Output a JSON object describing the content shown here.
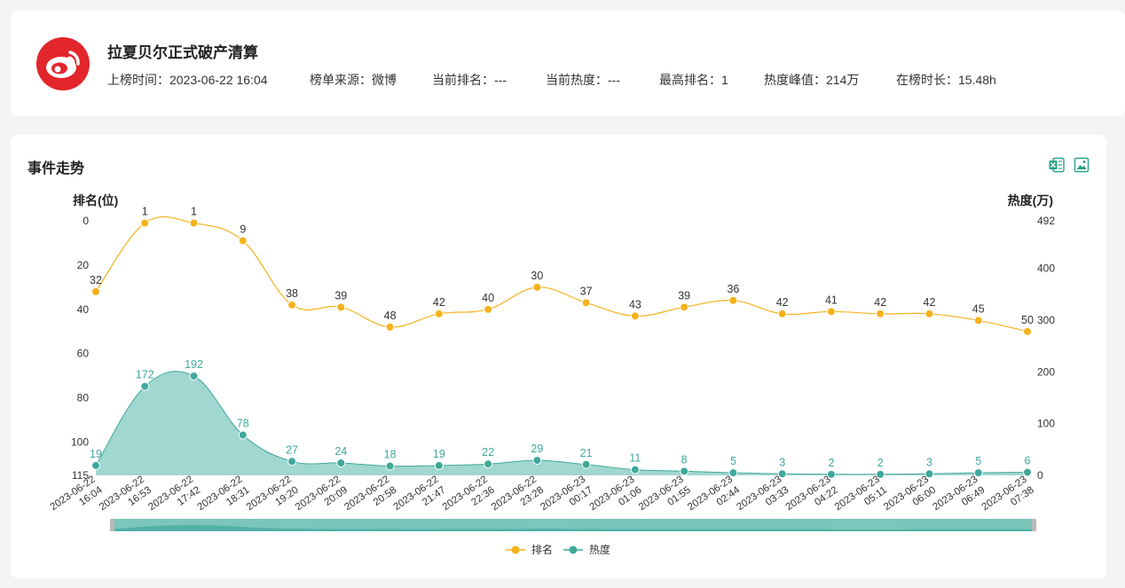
{
  "header": {
    "title": "拉夏贝尔正式破产清算",
    "meta": [
      {
        "label": "上榜时间：",
        "value": "2023-06-22 16:04"
      },
      {
        "label": "榜单来源：",
        "value": "微博"
      },
      {
        "label": "当前排名：",
        "value": "---"
      },
      {
        "label": "当前热度：",
        "value": "---"
      },
      {
        "label": "最高排名：",
        "value": "1"
      },
      {
        "label": "热度峰值：",
        "value": "214万"
      },
      {
        "label": "在榜时长：",
        "value": "15.48h"
      }
    ]
  },
  "section": {
    "title": "事件走势",
    "icons": [
      "excel-export-icon",
      "image-export-icon"
    ]
  },
  "colors": {
    "rank": "#f5b21b",
    "heat": "#40a89b",
    "heat_fill": "#9bd5cd",
    "logo_bg": "#e2262c"
  },
  "chart_data": {
    "type": "line",
    "x": [
      "2023-06-22 16:04",
      "2023-06-22 16:53",
      "2023-06-22 17:42",
      "2023-06-22 18:31",
      "2023-06-22 19:20",
      "2023-06-22 20:09",
      "2023-06-22 20:58",
      "2023-06-22 21:47",
      "2023-06-22 22:36",
      "2023-06-22 23:28",
      "2023-06-23 00:17",
      "2023-06-23 01:06",
      "2023-06-23 01:55",
      "2023-06-23 02:44",
      "2023-06-23 03:33",
      "2023-06-23 04:22",
      "2023-06-23 05:11",
      "2023-06-23 06:00",
      "2023-06-23 06:49",
      "2023-06-23 07:38"
    ],
    "x_tick_labels": [
      [
        "2023-06-22",
        "16:04"
      ],
      [
        "2023-06-22",
        "16:53"
      ],
      [
        "2023-06-22",
        "17:42"
      ],
      [
        "2023-06-22",
        "18:31"
      ],
      [
        "2023-06-22",
        "19:20"
      ],
      [
        "2023-06-22",
        "20:09"
      ],
      [
        "2023-06-22",
        "20:58"
      ],
      [
        "2023-06-22",
        "21:47"
      ],
      [
        "2023-06-22",
        "22:36"
      ],
      [
        "2023-06-22",
        "23:28"
      ],
      [
        "2023-06-23",
        "00:17"
      ],
      [
        "2023-06-23",
        "01:06"
      ],
      [
        "2023-06-23",
        "01:55"
      ],
      [
        "2023-06-23",
        "02:44"
      ],
      [
        "2023-06-23",
        "03:33"
      ],
      [
        "2023-06-23",
        "04:22"
      ],
      [
        "2023-06-23",
        "05:11"
      ],
      [
        "2023-06-23",
        "06:00"
      ],
      [
        "2023-06-23",
        "06:49"
      ],
      [
        "2023-06-23",
        "07:38"
      ]
    ],
    "series": [
      {
        "name": "排名",
        "axis": "left",
        "values": [
          32,
          1,
          1,
          9,
          38,
          39,
          48,
          42,
          40,
          30,
          37,
          43,
          39,
          36,
          42,
          41,
          42,
          42,
          45,
          50
        ]
      },
      {
        "name": "热度",
        "axis": "right",
        "values": [
          19,
          172,
          192,
          78,
          27,
          24,
          18,
          19,
          22,
          29,
          21,
          11,
          8,
          5,
          3,
          2,
          2,
          3,
          5,
          6
        ]
      }
    ],
    "left_axis": {
      "label": "排名(位)",
      "ticks": [
        0,
        20,
        40,
        60,
        80,
        100,
        115
      ],
      "range": [
        0,
        115
      ],
      "inverted": true
    },
    "right_axis": {
      "label": "热度(万)",
      "ticks": [
        0,
        100,
        200,
        300,
        400,
        492
      ],
      "range": [
        0,
        492
      ]
    },
    "legend": {
      "position": "bottom-center"
    },
    "grid": false
  }
}
